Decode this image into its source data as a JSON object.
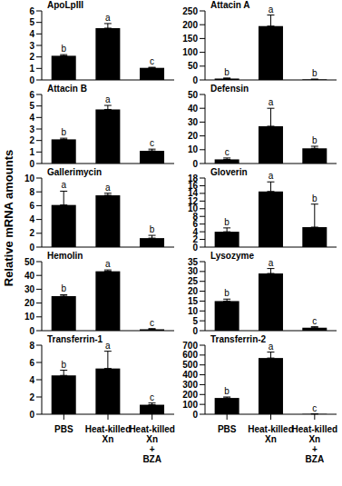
{
  "y_label": "Relative mRNA amounts",
  "chart_data": [
    {
      "type": "bar",
      "title": "ApoLpIII",
      "categories": [
        "PBS",
        "Heat-killed Xn",
        "Heat-killed Xn + BZA"
      ],
      "values": [
        2.1,
        4.5,
        1.05
      ],
      "errors": [
        0.1,
        0.4,
        0.05
      ],
      "annotations": [
        "b",
        "a",
        "c"
      ],
      "color": "#000000",
      "ylim": [
        0,
        6
      ],
      "yticks": [
        0,
        1,
        2,
        3,
        4,
        5,
        6
      ],
      "tick_labels": "y"
    },
    {
      "type": "bar",
      "title": "Attacin A",
      "categories": [
        "PBS",
        "Heat-killed Xn",
        "Heat-killed Xn + BZA"
      ],
      "values": [
        5,
        195,
        2
      ],
      "errors": [
        2,
        40,
        1
      ],
      "annotations": [
        "b",
        "a",
        "b"
      ],
      "color": "#000000",
      "ylim": [
        0,
        250
      ],
      "yticks": [
        0,
        50,
        100,
        150,
        200,
        250
      ],
      "tick_labels": "y"
    },
    {
      "type": "bar",
      "title": "Attacin B",
      "categories": [
        "PBS",
        "Heat-killed Xn",
        "Heat-killed Xn + BZA"
      ],
      "values": [
        2.1,
        4.7,
        1.1
      ],
      "errors": [
        0.1,
        0.35,
        0.15
      ],
      "annotations": [
        "b",
        "a",
        "c"
      ],
      "color": "#000000",
      "ylim": [
        0,
        6
      ],
      "yticks": [
        0,
        1,
        2,
        3,
        4,
        5,
        6
      ],
      "tick_labels": "y"
    },
    {
      "type": "bar",
      "title": "Defensin",
      "categories": [
        "PBS",
        "Heat-killed Xn",
        "Heat-killed Xn + BZA"
      ],
      "values": [
        3,
        27,
        11
      ],
      "errors": [
        1,
        13,
        1.5
      ],
      "annotations": [
        "c",
        "a",
        "b"
      ],
      "color": "#000000",
      "ylim": [
        0,
        50
      ],
      "yticks": [
        0,
        10,
        20,
        30,
        40,
        50
      ],
      "tick_labels": "y"
    },
    {
      "type": "bar",
      "title": "Gallerimycin",
      "categories": [
        "PBS",
        "Heat-killed Xn",
        "Heat-killed Xn + BZA"
      ],
      "values": [
        6.1,
        7.5,
        1.3
      ],
      "errors": [
        2,
        0.3,
        0.4
      ],
      "annotations": [
        "a",
        "a",
        "b"
      ],
      "color": "#000000",
      "ylim": [
        0,
        10
      ],
      "yticks": [
        0,
        2,
        4,
        6,
        8,
        10
      ],
      "tick_labels": "y"
    },
    {
      "type": "bar",
      "title": "Gloverin",
      "categories": [
        "PBS",
        "Heat-killed Xn",
        "Heat-killed Xn + BZA"
      ],
      "values": [
        4,
        14.5,
        5.2
      ],
      "errors": [
        1,
        2.5,
        6
      ],
      "annotations": [
        "b",
        "a",
        "b"
      ],
      "color": "#000000",
      "ylim": [
        0,
        18
      ],
      "yticks": [
        0,
        2,
        4,
        6,
        8,
        10,
        12,
        14,
        16,
        18
      ],
      "tick_labels": "y"
    },
    {
      "type": "bar",
      "title": "Hemolin",
      "categories": [
        "PBS",
        "Heat-killed Xn",
        "Heat-killed Xn + BZA"
      ],
      "values": [
        25,
        43,
        1
      ],
      "errors": [
        1,
        1,
        0.5
      ],
      "annotations": [
        "b",
        "a",
        "c"
      ],
      "color": "#000000",
      "ylim": [
        0,
        50
      ],
      "yticks": [
        0,
        10,
        20,
        30,
        40,
        50
      ],
      "tick_labels": "y"
    },
    {
      "type": "bar",
      "title": "Lysozyme",
      "categories": [
        "PBS",
        "Heat-killed Xn",
        "Heat-killed Xn + BZA"
      ],
      "values": [
        15,
        29,
        1.5
      ],
      "errors": [
        1,
        2.5,
        0.5
      ],
      "annotations": [
        "b",
        "a",
        "c"
      ],
      "color": "#000000",
      "ylim": [
        0,
        35
      ],
      "yticks": [
        0,
        5,
        10,
        15,
        20,
        25,
        30,
        35
      ],
      "tick_labels": "y"
    },
    {
      "type": "bar",
      "title": "Transferrin-1",
      "categories": [
        "PBS",
        "Heat-killed Xn",
        "Heat-killed Xn + BZA"
      ],
      "values": [
        4.5,
        5.3,
        1.1
      ],
      "errors": [
        0.6,
        2,
        0.2
      ],
      "annotations": [
        "b",
        "a",
        "c"
      ],
      "color": "#000000",
      "ylim": [
        0,
        8
      ],
      "yticks": [
        0,
        2,
        4,
        6,
        8
      ]
    },
    {
      "type": "bar",
      "title": "Transferrin-2",
      "categories": [
        "PBS",
        "Heat-killed Xn",
        "Heat-killed Xn + BZA"
      ],
      "values": [
        165,
        570,
        3
      ],
      "errors": [
        10,
        60,
        1
      ],
      "annotations": [
        "b",
        "a",
        "c"
      ],
      "color": "#000000",
      "ylim": [
        0,
        700
      ],
      "yticks": [
        0,
        100,
        200,
        300,
        400,
        500,
        600,
        700
      ]
    }
  ]
}
